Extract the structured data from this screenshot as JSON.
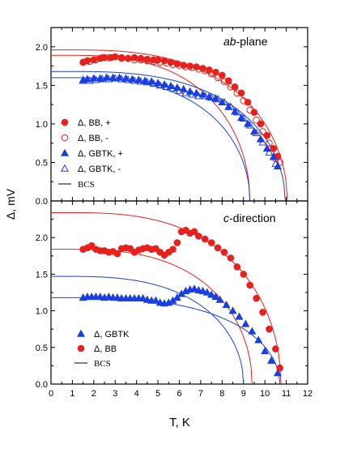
{
  "chart_data": [
    {
      "panel": "top",
      "type": "scatter",
      "title": "ab-plane",
      "title_parts": {
        "italic": "ab",
        "rest": "-plane"
      },
      "xlabel": "T, K",
      "ylabel": "Δ, mV",
      "xlim": [
        0,
        12
      ],
      "ylim": [
        0,
        2.25
      ],
      "xticks": [
        0,
        1,
        2,
        3,
        4,
        5,
        6,
        7,
        8,
        9,
        10,
        11,
        12
      ],
      "yticks": [
        0.0,
        0.5,
        1.0,
        1.5,
        2.0
      ],
      "legend_position": "lower-left",
      "series": [
        {
          "name": "Δ, BB, +",
          "marker": "filled-circle",
          "color": "#e8211c",
          "x": [
            1.5,
            1.7,
            2.0,
            2.3,
            2.5,
            2.8,
            3.0,
            3.3,
            3.6,
            3.9,
            4.2,
            4.5,
            4.8,
            5.0,
            5.3,
            5.6,
            5.9,
            6.2,
            6.5,
            6.8,
            7.1,
            7.4,
            7.7,
            8.0,
            8.3,
            8.6,
            8.9,
            9.2,
            9.5,
            9.8,
            10.1,
            10.4,
            10.6
          ],
          "y": [
            1.8,
            1.82,
            1.83,
            1.85,
            1.86,
            1.86,
            1.87,
            1.86,
            1.85,
            1.86,
            1.85,
            1.84,
            1.83,
            1.83,
            1.82,
            1.8,
            1.78,
            1.76,
            1.75,
            1.74,
            1.72,
            1.7,
            1.67,
            1.63,
            1.56,
            1.48,
            1.4,
            1.28,
            1.15,
            1.0,
            0.85,
            0.68,
            0.58
          ]
        },
        {
          "name": "Δ, BB, -",
          "marker": "open-circle",
          "color": "#e8211c",
          "x": [
            1.5,
            1.8,
            2.1,
            2.4,
            2.7,
            3.0,
            3.3,
            3.6,
            3.9,
            4.2,
            4.5,
            4.8,
            5.1,
            5.4,
            5.7,
            6.0,
            6.3,
            6.6,
            6.9,
            7.2,
            7.5,
            7.8,
            8.1,
            8.4,
            8.7,
            9.0,
            9.3,
            9.6,
            9.9,
            10.2,
            10.5,
            10.7
          ],
          "y": [
            1.8,
            1.81,
            1.83,
            1.86,
            1.86,
            1.87,
            1.85,
            1.85,
            1.83,
            1.83,
            1.82,
            1.81,
            1.8,
            1.79,
            1.77,
            1.76,
            1.74,
            1.73,
            1.71,
            1.69,
            1.65,
            1.6,
            1.55,
            1.48,
            1.4,
            1.3,
            1.18,
            1.05,
            0.9,
            0.75,
            0.55,
            0.5
          ]
        },
        {
          "name": "Δ, GBTK, +",
          "marker": "filled-triangle",
          "color": "#1a3fe0",
          "x": [
            1.5,
            1.7,
            2.0,
            2.3,
            2.6,
            2.9,
            3.2,
            3.5,
            3.8,
            4.1,
            4.4,
            4.7,
            5.0,
            5.3,
            5.6,
            5.9,
            6.2,
            6.5,
            6.8,
            7.1,
            7.4,
            7.7,
            8.0,
            8.3,
            8.6,
            8.9,
            9.2,
            9.5,
            9.8,
            10.1,
            10.4,
            10.6
          ],
          "y": [
            1.57,
            1.58,
            1.59,
            1.59,
            1.6,
            1.6,
            1.6,
            1.59,
            1.58,
            1.57,
            1.56,
            1.55,
            1.53,
            1.51,
            1.49,
            1.47,
            1.45,
            1.42,
            1.4,
            1.38,
            1.35,
            1.33,
            1.28,
            1.22,
            1.16,
            1.08,
            1.0,
            0.9,
            0.8,
            0.68,
            0.57,
            0.45
          ]
        },
        {
          "name": "Δ, GBTK, -",
          "marker": "open-triangle",
          "color": "#1a3fe0",
          "x": [
            1.5,
            1.8,
            2.1,
            2.4,
            2.7,
            3.0,
            3.3,
            3.6,
            3.9,
            4.2,
            4.5,
            4.8,
            5.1,
            5.4,
            5.7,
            6.0,
            6.3,
            6.6,
            6.9,
            7.2,
            7.5,
            7.8,
            8.1,
            8.4,
            8.7,
            9.0,
            9.3,
            9.6,
            9.9,
            10.2,
            10.5
          ],
          "y": [
            1.56,
            1.56,
            1.57,
            1.58,
            1.58,
            1.59,
            1.58,
            1.57,
            1.56,
            1.55,
            1.54,
            1.52,
            1.5,
            1.48,
            1.46,
            1.43,
            1.4,
            1.38,
            1.36,
            1.36,
            1.34,
            1.32,
            1.28,
            1.22,
            1.15,
            1.07,
            0.98,
            0.88,
            0.76,
            0.63,
            0.48
          ]
        },
        {
          "name": "BCS",
          "marker": "line",
          "color": "#000000",
          "curves": [
            {
              "color": "#e8211c",
              "delta0": 1.96,
              "tc": 11.05
            },
            {
              "color": "#e8211c",
              "delta0": 1.89,
              "tc": 9.3
            },
            {
              "color": "#1a3fe0",
              "delta0": 1.68,
              "tc": 10.95
            },
            {
              "color": "#1a3fe0",
              "delta0": 1.6,
              "tc": 9.3
            }
          ]
        }
      ]
    },
    {
      "panel": "bottom",
      "type": "scatter",
      "title": "c-direction",
      "title_parts": {
        "italic": "c",
        "rest": "-direction"
      },
      "xlabel": "T, K",
      "ylabel": "Δ, mV",
      "xlim": [
        0,
        12
      ],
      "ylim": [
        0,
        2.5
      ],
      "xticks": [
        0,
        1,
        2,
        3,
        4,
        5,
        6,
        7,
        8,
        9,
        10,
        11,
        12
      ],
      "yticks": [
        0.0,
        0.5,
        1.0,
        1.5,
        2.0
      ],
      "legend_position": "lower-left",
      "series": [
        {
          "name": "Δ, GBTK",
          "marker": "filled-triangle",
          "color": "#1a3fe0",
          "x": [
            1.5,
            1.7,
            1.9,
            2.1,
            2.3,
            2.5,
            2.7,
            2.9,
            3.1,
            3.3,
            3.5,
            3.7,
            3.9,
            4.1,
            4.3,
            4.5,
            4.7,
            4.9,
            5.1,
            5.3,
            5.5,
            5.7,
            5.9,
            6.1,
            6.3,
            6.5,
            6.7,
            6.9,
            7.1,
            7.3,
            7.5,
            7.7,
            7.9,
            8.2,
            8.5,
            8.8,
            9.1,
            9.4,
            9.7,
            10.0,
            10.3,
            10.6
          ],
          "y": [
            1.18,
            1.19,
            1.19,
            1.19,
            1.19,
            1.18,
            1.19,
            1.18,
            1.18,
            1.17,
            1.17,
            1.17,
            1.17,
            1.17,
            1.17,
            1.15,
            1.14,
            1.14,
            1.11,
            1.1,
            1.11,
            1.14,
            1.18,
            1.23,
            1.27,
            1.29,
            1.3,
            1.28,
            1.27,
            1.25,
            1.22,
            1.19,
            1.15,
            1.08,
            1.0,
            0.92,
            0.82,
            0.72,
            0.6,
            0.45,
            0.32,
            0.15
          ]
        },
        {
          "name": "Δ, BB",
          "marker": "filled-circle",
          "color": "#e8211c",
          "x": [
            1.5,
            1.7,
            1.9,
            2.1,
            2.3,
            2.5,
            2.7,
            2.9,
            3.1,
            3.3,
            3.5,
            3.7,
            3.9,
            4.1,
            4.3,
            4.5,
            4.7,
            4.9,
            5.1,
            5.3,
            5.5,
            5.7,
            5.9,
            6.1,
            6.3,
            6.5,
            6.7,
            6.9,
            7.2,
            7.5,
            7.8,
            8.1,
            8.4,
            8.7,
            9.0,
            9.3,
            9.6,
            9.9,
            10.2,
            10.5,
            10.7
          ],
          "y": [
            1.84,
            1.86,
            1.89,
            1.84,
            1.82,
            1.82,
            1.8,
            1.81,
            1.78,
            1.85,
            1.86,
            1.85,
            1.8,
            1.83,
            1.85,
            1.86,
            1.84,
            1.85,
            1.8,
            1.76,
            1.8,
            1.84,
            1.93,
            2.08,
            2.1,
            2.06,
            2.08,
            2.02,
            1.98,
            1.93,
            1.86,
            1.8,
            1.72,
            1.6,
            1.5,
            1.35,
            1.17,
            0.98,
            0.75,
            0.48,
            0.22
          ]
        },
        {
          "name": "BCS",
          "marker": "line",
          "color": "#000000",
          "curves": [
            {
              "color": "#e8211c",
              "delta0": 2.34,
              "tc": 10.75
            },
            {
              "color": "#e8211c",
              "delta0": 1.84,
              "tc": 9.4
            },
            {
              "color": "#1a3fe0",
              "delta0": 1.47,
              "tc": 9.0
            },
            {
              "color": "#1a3fe0",
              "delta0": 1.18,
              "tc": 10.7
            }
          ]
        }
      ]
    }
  ],
  "shared_axis": {
    "xlabel": "T, K",
    "ylabel": "Δ, mV"
  }
}
